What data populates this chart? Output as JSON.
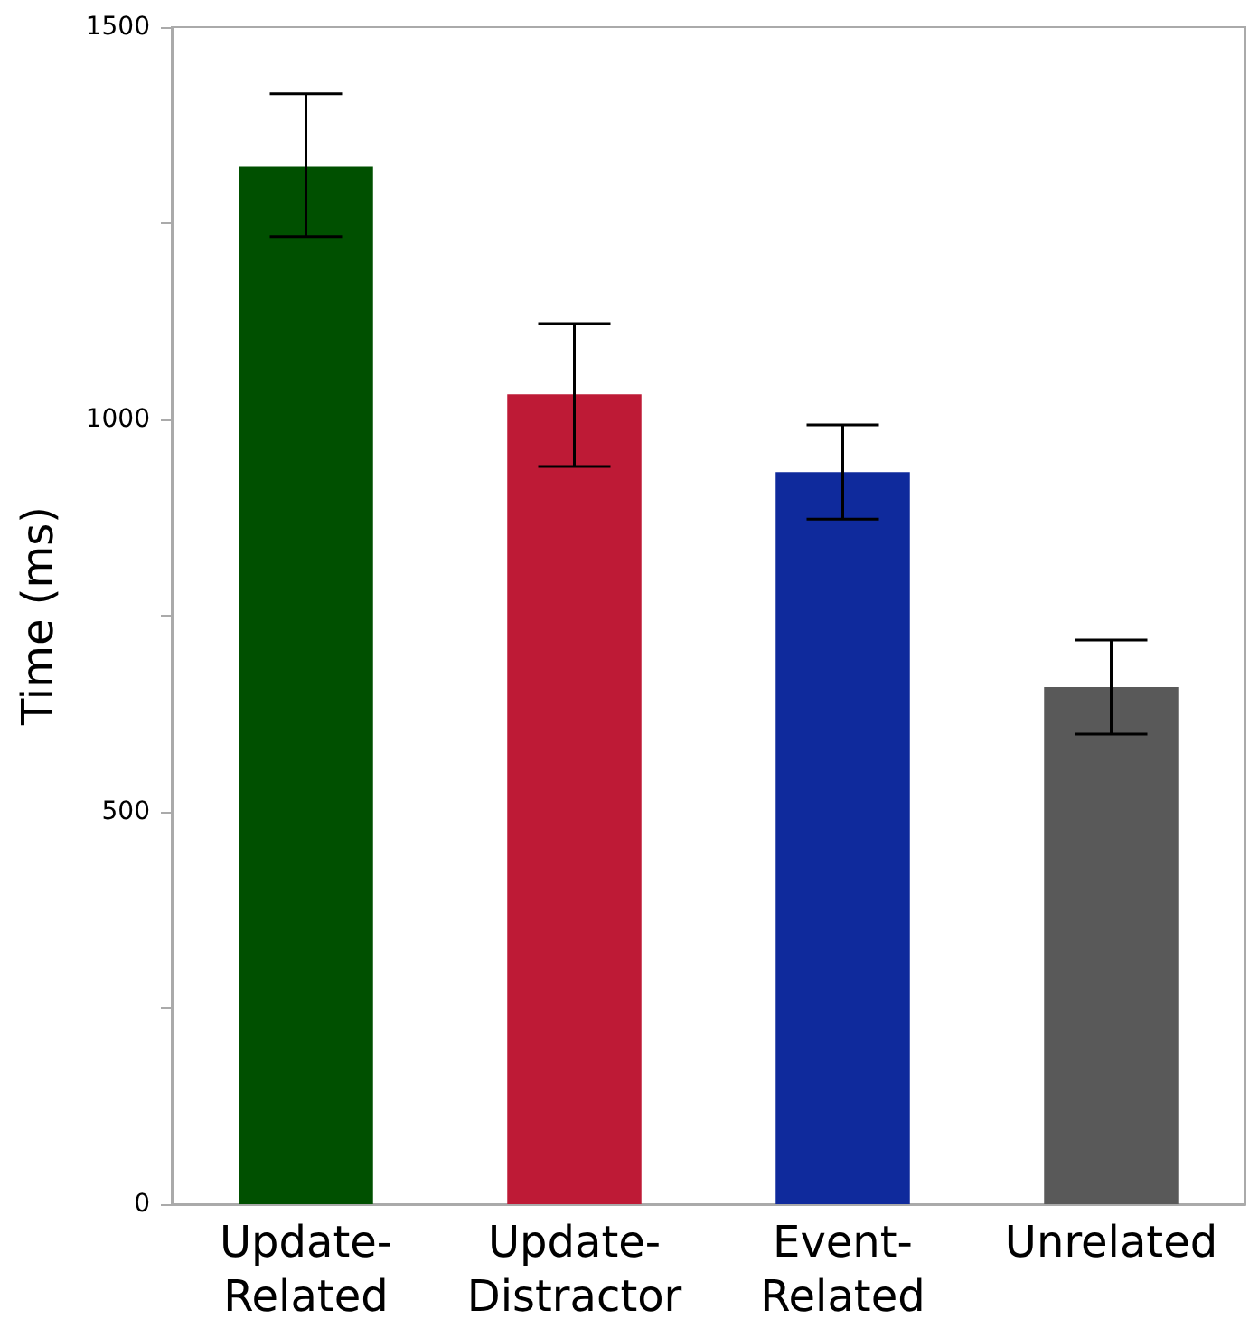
{
  "chart_data": {
    "type": "bar",
    "ylabel": "Time (ms)",
    "categories": [
      "Update-Related",
      "Update-Distractor",
      "Event-Related",
      "Unrelated"
    ],
    "values": [
      1322,
      1032,
      933,
      659
    ],
    "colors": [
      "#005000",
      "#be1a36",
      "#0f2a9c",
      "#595959"
    ],
    "errors": [
      [
        1233,
        1415
      ],
      [
        940,
        1122
      ],
      [
        873,
        993
      ],
      [
        599,
        719
      ]
    ],
    "ylim": [
      0,
      1500
    ],
    "yticks": [
      0,
      {
        "value": 250,
        "label": null
      },
      500,
      {
        "value": 750,
        "label": null
      },
      1000,
      {
        "value": 1250,
        "label": null
      },
      1500
    ],
    "grid": false
  }
}
